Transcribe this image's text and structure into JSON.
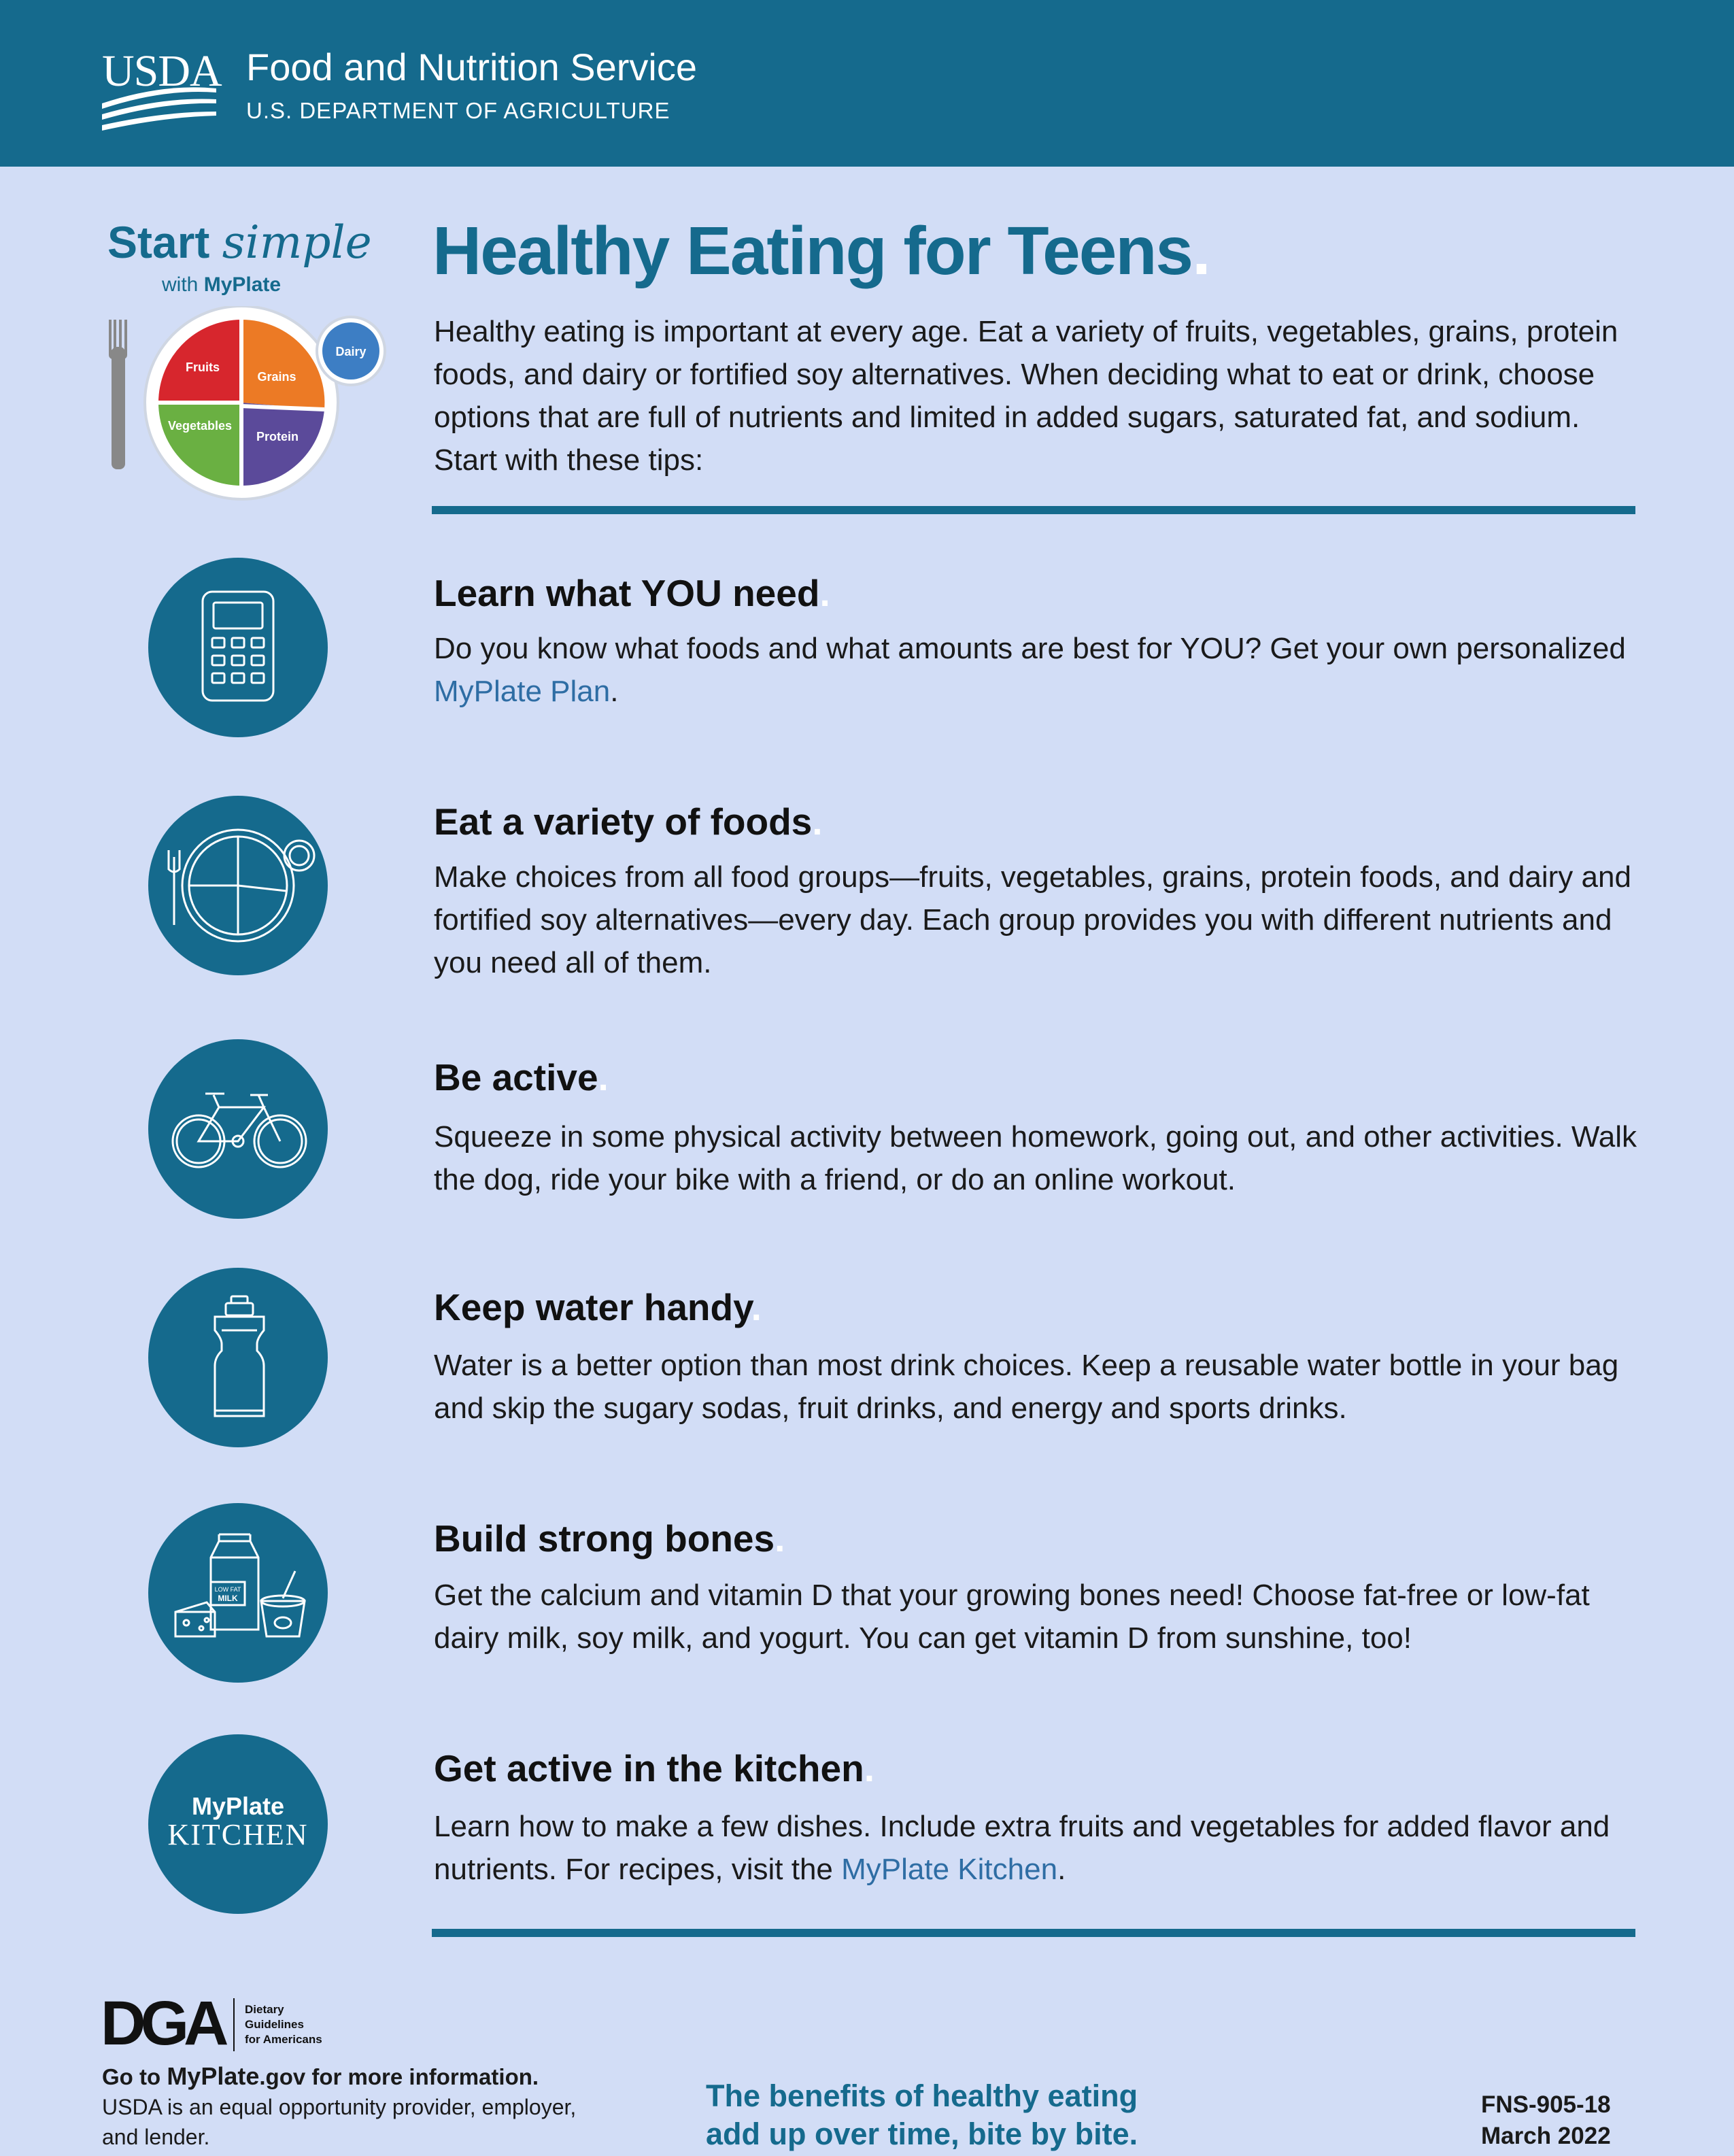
{
  "header": {
    "logo_text": "USDA",
    "agency": "Food and Nutrition Service",
    "department": "U.S. DEPARTMENT OF AGRICULTURE"
  },
  "brand": {
    "start": "Start",
    "simple": "simple",
    "with": "with",
    "myplate": "MyPlate",
    "plate_labels": {
      "fruits": "Fruits",
      "grains": "Grains",
      "vegetables": "Vegetables",
      "protein": "Protein",
      "dairy": "Dairy"
    }
  },
  "main": {
    "title": "Healthy Eating for Teens",
    "title_dot": ".",
    "intro": "Healthy eating is important at every age. Eat a variety of fruits, vegetables, grains, protein foods, and dairy or fortified soy alternatives. When deciding what to eat or drink, choose options that are full of nutrients and limited in added sugars, saturated fat, and sodium. Start with these tips:"
  },
  "tips": [
    {
      "icon": "calculator-icon",
      "heading": "Learn what YOU need",
      "body_pre": "Do you know what foods and what amounts are best for YOU? Get your own personalized ",
      "link": "MyPlate Plan",
      "body_post": "."
    },
    {
      "icon": "plate-icon",
      "heading": "Eat a variety of foods",
      "body": "Make choices from all food groups—fruits, vegetables, grains, protein foods, and dairy and fortified soy alternatives—every day. Each group provides you with different nutrients and you need all of them."
    },
    {
      "icon": "bicycle-icon",
      "heading": "Be active",
      "body": "Squeeze in some physical activity between homework, going out, and other activities. Walk the dog, ride your bike with a friend, or do an online workout."
    },
    {
      "icon": "water-bottle-icon",
      "heading": "Keep water handy",
      "body": "Water is a better option than most drink choices. Keep a reusable water bottle in your bag and skip the sugary sodas, fruit drinks, and energy and sports drinks."
    },
    {
      "icon": "dairy-icon",
      "milk_label_1": "LOW FAT",
      "milk_label_2": "MILK",
      "heading": "Build strong bones",
      "body": "Get the calcium and vitamin D that your growing bones need! Choose fat-free or low-fat dairy milk, soy milk, and yogurt. You can get vitamin D from sunshine, too!"
    },
    {
      "icon": "myplate-kitchen-icon",
      "logo_line1": "MyPlate",
      "logo_line2": "KITCHEN",
      "heading": "Get active in the kitchen",
      "body_pre": "Learn how to make a few dishes. Include extra fruits and vegetables for added flavor and nutrients. For recipes, visit the ",
      "link": "MyPlate Kitchen",
      "body_post": "."
    }
  ],
  "footer": {
    "dga_logo": "DGA",
    "dga_line1": "Dietary",
    "dga_line2": "Guidelines",
    "dga_line3": "for Americans",
    "goto_pre": "Go to ",
    "goto_link": "MyPlate",
    "goto_post": ".gov for more information.",
    "equal_opportunity": "USDA is an equal opportunity provider, employer, and lender.",
    "tagline_1": "The benefits of healthy eating",
    "tagline_2": "add up over time, bite by bite.",
    "doc_number": "FNS-905-18",
    "date": "March 2022"
  },
  "colors": {
    "brand_blue": "#156a8d",
    "background": "#d2ddf6",
    "link": "#2e6da4",
    "fruits": "#d7262d",
    "grains": "#ec7a25",
    "vegetables": "#6ab042",
    "protein": "#5b4a9a",
    "dairy": "#3d7ec4"
  }
}
